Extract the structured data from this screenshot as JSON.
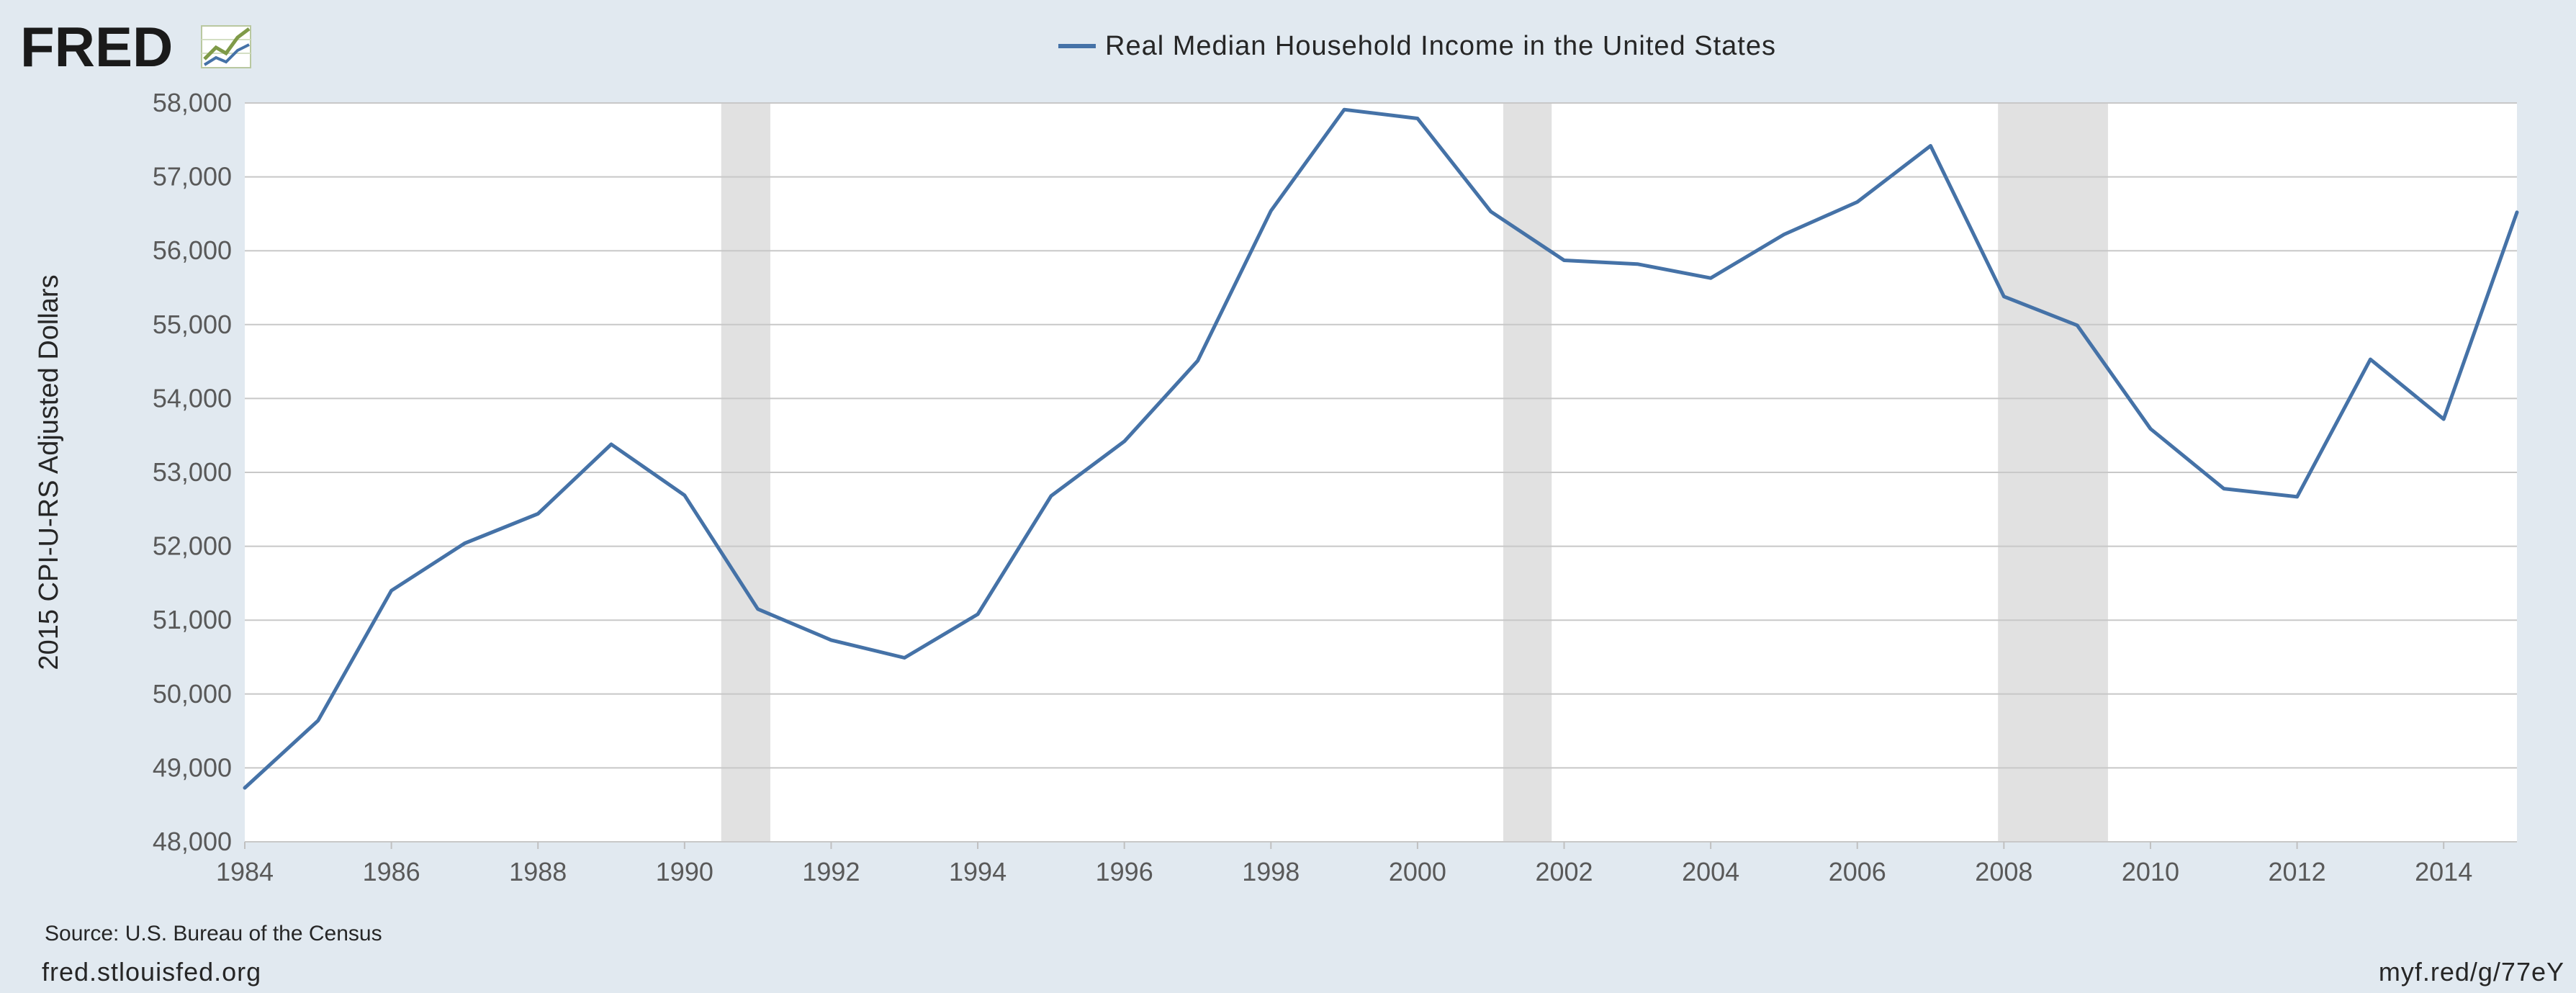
{
  "logo": {
    "text": "FRED"
  },
  "source": "Source: U.S. Bureau of the Census",
  "footer": {
    "left": "fred.stlouisfed.org",
    "right": "myf.red/g/77eY"
  },
  "chart_data": {
    "type": "line",
    "title": "",
    "xlabel": "",
    "ylabel": "2015 CPI-U-RS Adjusted Dollars",
    "xlim": [
      1984,
      2015
    ],
    "ylim": [
      48000,
      58000
    ],
    "grid": true,
    "legend_position": "top-center",
    "x_ticks": [
      1984,
      1986,
      1988,
      1990,
      1992,
      1994,
      1996,
      1998,
      2000,
      2002,
      2004,
      2006,
      2008,
      2010,
      2012,
      2014
    ],
    "x_tick_labels": [
      "1984",
      "1986",
      "1988",
      "1990",
      "1992",
      "1994",
      "1996",
      "1998",
      "2000",
      "2002",
      "2004",
      "2006",
      "2008",
      "2010",
      "2012",
      "2014"
    ],
    "y_ticks": [
      48000,
      49000,
      50000,
      51000,
      52000,
      53000,
      54000,
      55000,
      56000,
      57000,
      58000
    ],
    "y_tick_labels": [
      "48,000",
      "49,000",
      "50,000",
      "51,000",
      "52,000",
      "53,000",
      "54,000",
      "55,000",
      "56,000",
      "57,000",
      "58,000"
    ],
    "recessions": [
      {
        "start": 1990.5,
        "end": 1991.17
      },
      {
        "start": 2001.17,
        "end": 2001.83
      },
      {
        "start": 2007.92,
        "end": 2009.42
      }
    ],
    "series": [
      {
        "name": "Real Median Household Income in the United States",
        "color": "#4572a7",
        "x": [
          1984,
          1985,
          1986,
          1987,
          1988,
          1989,
          1990,
          1991,
          1992,
          1993,
          1994,
          1995,
          1996,
          1997,
          1998,
          1999,
          2000,
          2001,
          2002,
          2003,
          2004,
          2005,
          2006,
          2007,
          2008,
          2009,
          2010,
          2011,
          2012,
          2013,
          2014,
          2015
        ],
        "values": [
          48730,
          49640,
          51400,
          52040,
          52440,
          53380,
          52690,
          51150,
          50730,
          50490,
          51080,
          52680,
          53420,
          54510,
          56540,
          57910,
          57790,
          56530,
          55870,
          55820,
          55630,
          56220,
          56660,
          57420,
          55380,
          54990,
          53590,
          52780,
          52670,
          54530,
          53720,
          56520
        ]
      }
    ]
  },
  "colors": {
    "background": "#e1e9f0",
    "plot_background": "#ffffff",
    "grid": "#c8c8c8",
    "recession": "#e1e1e1",
    "line": "#4572a7"
  }
}
